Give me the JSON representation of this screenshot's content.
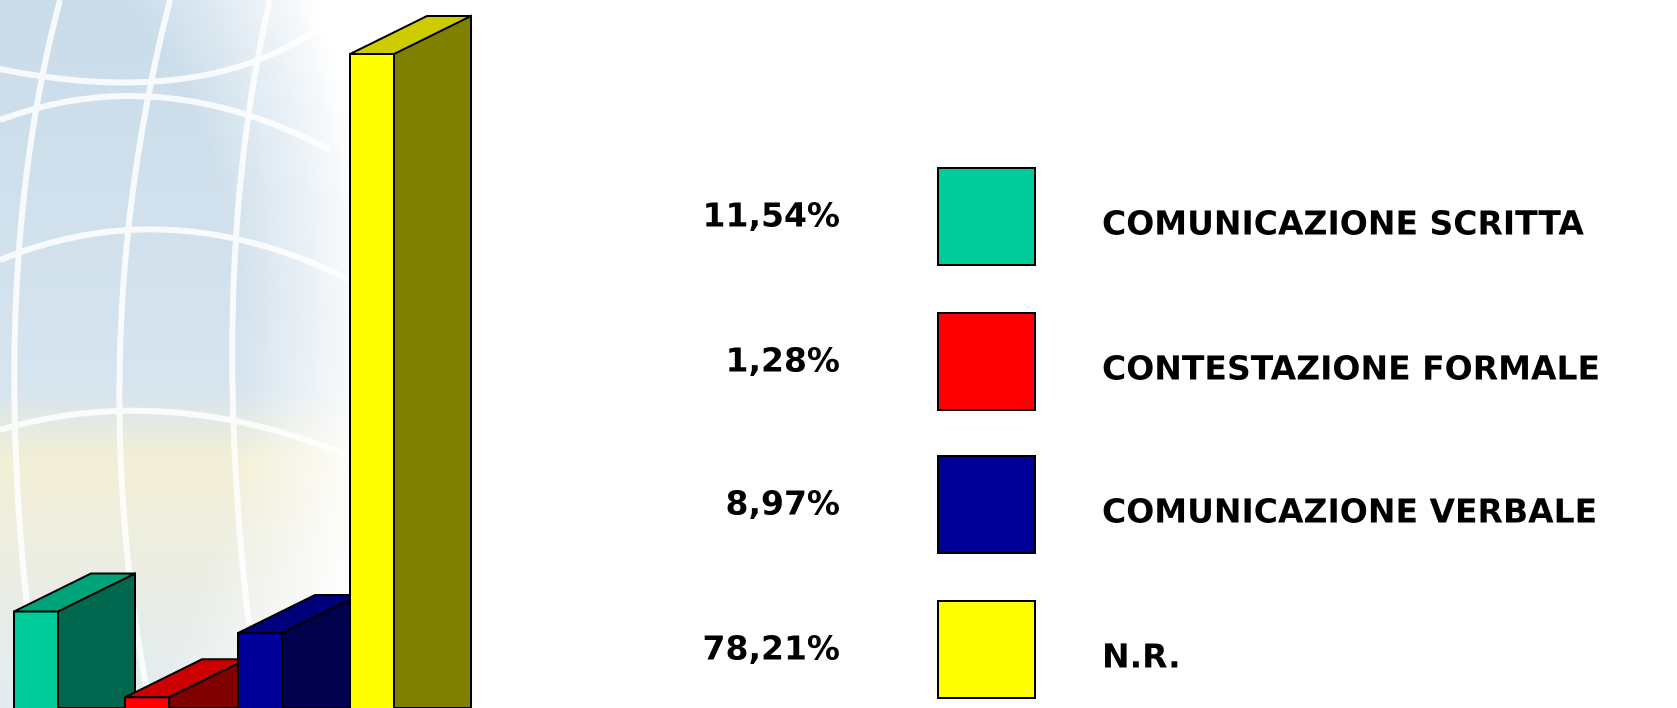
{
  "chart_data": {
    "type": "bar3d",
    "categories": [
      "COMUNICAZIONE SCRITTA",
      "CONTESTAZIONE FORMALE",
      "COMUNICAZIONE VERBALE",
      "N.R."
    ],
    "values": [
      11.54,
      1.28,
      8.97,
      78.21
    ],
    "value_labels": [
      "11,54%",
      "1,28%",
      "8,97%",
      "78,21%"
    ],
    "colors": [
      "#00cc99",
      "#ff0000",
      "#000099",
      "#ffff00"
    ],
    "legend": "right"
  }
}
